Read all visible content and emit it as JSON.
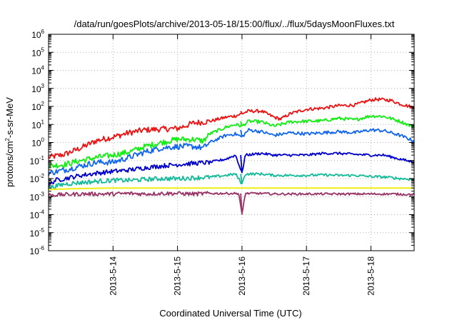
{
  "chart_data": {
    "type": "line",
    "title": "/data/run/goesPlots/archive/2013-05-18/15:00/flux/../flux/5daysMoonFluxes.txt",
    "xlabel": "Coordinated Universal Time (UTC)",
    "ylabel": {
      "prefix": "protons/cm",
      "superscript": "2",
      "suffix": "-s-sr-MeV"
    },
    "x_range_days": [
      13.0,
      18.67
    ],
    "x_ticks": [
      {
        "label": "2013-5-14",
        "day": 14
      },
      {
        "label": "2013-5-15",
        "day": 15
      },
      {
        "label": "2013-5-16",
        "day": 16
      },
      {
        "label": "2013-5-17",
        "day": 17
      },
      {
        "label": "2013-5-18",
        "day": 18
      }
    ],
    "y_scale": "log",
    "ylim": [
      1e-06,
      1000000.0
    ],
    "y_ticks": [
      {
        "base": "10",
        "exp": "-6"
      },
      {
        "base": "10",
        "exp": "-5"
      },
      {
        "base": "10",
        "exp": "-4"
      },
      {
        "base": "10",
        "exp": "-3"
      },
      {
        "base": "10",
        "exp": "-2"
      },
      {
        "base": "10",
        "exp": "-1"
      },
      {
        "base": "10",
        "exp": "0"
      },
      {
        "base": "10",
        "exp": "1"
      },
      {
        "base": "10",
        "exp": "2"
      },
      {
        "base": "10",
        "exp": "3"
      },
      {
        "base": "10",
        "exp": "4"
      },
      {
        "base": "10",
        "exp": "5"
      },
      {
        "base": "10",
        "exp": "6"
      }
    ],
    "grid": true,
    "series": [
      {
        "color": "#ee1111",
        "points": [
          [
            13.0,
            0.15
          ],
          [
            13.25,
            0.22
          ],
          [
            13.5,
            0.5
          ],
          [
            13.75,
            1.3
          ],
          [
            14.0,
            2.0
          ],
          [
            14.25,
            3.5
          ],
          [
            14.5,
            5.0
          ],
          [
            14.75,
            5.5
          ],
          [
            15.0,
            6.0
          ],
          [
            15.25,
            12
          ],
          [
            15.5,
            15
          ],
          [
            15.75,
            25
          ],
          [
            15.9,
            30
          ],
          [
            16.0,
            40
          ],
          [
            16.1,
            55
          ],
          [
            16.3,
            55
          ],
          [
            16.5,
            25
          ],
          [
            16.6,
            20
          ],
          [
            16.75,
            40
          ],
          [
            17.0,
            70
          ],
          [
            17.25,
            80
          ],
          [
            17.5,
            110
          ],
          [
            17.75,
            120
          ],
          [
            18.0,
            230
          ],
          [
            18.1,
            250
          ],
          [
            18.3,
            220
          ],
          [
            18.45,
            140
          ],
          [
            18.67,
            85
          ]
        ]
      },
      {
        "color": "#11ee11",
        "points": [
          [
            13.0,
            0.05
          ],
          [
            13.25,
            0.06
          ],
          [
            13.5,
            0.1
          ],
          [
            13.75,
            0.15
          ],
          [
            14.0,
            0.2
          ],
          [
            14.25,
            0.3
          ],
          [
            14.5,
            0.6
          ],
          [
            14.75,
            1.0
          ],
          [
            15.0,
            1.5
          ],
          [
            15.25,
            1.5
          ],
          [
            15.4,
            1.2
          ],
          [
            15.5,
            3.0
          ],
          [
            15.75,
            7.0
          ],
          [
            15.9,
            10
          ],
          [
            16.0,
            8
          ],
          [
            16.1,
            15
          ],
          [
            16.3,
            14
          ],
          [
            16.5,
            8
          ],
          [
            16.75,
            14
          ],
          [
            17.0,
            15
          ],
          [
            17.25,
            16
          ],
          [
            17.5,
            22
          ],
          [
            17.75,
            18
          ],
          [
            18.0,
            30
          ],
          [
            18.2,
            28
          ],
          [
            18.45,
            15
          ],
          [
            18.67,
            7
          ]
        ]
      },
      {
        "color": "#1166ee",
        "points": [
          [
            13.0,
            0.02
          ],
          [
            13.25,
            0.03
          ],
          [
            13.5,
            0.05
          ],
          [
            13.75,
            0.08
          ],
          [
            14.0,
            0.08
          ],
          [
            14.25,
            0.15
          ],
          [
            14.5,
            0.3
          ],
          [
            14.75,
            0.5
          ],
          [
            15.0,
            0.6
          ],
          [
            15.25,
            0.6
          ],
          [
            15.4,
            0.5
          ],
          [
            15.5,
            1.0
          ],
          [
            15.75,
            2.5
          ],
          [
            15.9,
            3.0
          ],
          [
            16.0,
            2.0
          ],
          [
            16.1,
            5.0
          ],
          [
            16.3,
            4.0
          ],
          [
            16.5,
            2.5
          ],
          [
            16.75,
            3.5
          ],
          [
            17.0,
            3.0
          ],
          [
            17.25,
            3.5
          ],
          [
            17.5,
            4.0
          ],
          [
            17.75,
            3.5
          ],
          [
            18.0,
            5.0
          ],
          [
            18.2,
            4.5
          ],
          [
            18.45,
            2.5
          ],
          [
            18.67,
            1.2
          ]
        ]
      },
      {
        "color": "#0000cc",
        "points": [
          [
            13.0,
            0.004
          ],
          [
            13.1,
            0.008
          ],
          [
            13.25,
            0.01
          ],
          [
            13.5,
            0.015
          ],
          [
            13.75,
            0.02
          ],
          [
            14.0,
            0.025
          ],
          [
            14.25,
            0.03
          ],
          [
            14.5,
            0.04
          ],
          [
            14.75,
            0.05
          ],
          [
            15.0,
            0.06
          ],
          [
            15.25,
            0.07
          ],
          [
            15.5,
            0.08
          ],
          [
            15.75,
            0.12
          ],
          [
            15.9,
            0.2
          ],
          [
            16.0,
            0.02
          ],
          [
            16.05,
            0.2
          ],
          [
            16.3,
            0.25
          ],
          [
            16.5,
            0.2
          ],
          [
            17.0,
            0.2
          ],
          [
            17.25,
            0.25
          ],
          [
            17.5,
            0.25
          ],
          [
            17.75,
            0.22
          ],
          [
            18.0,
            0.2
          ],
          [
            18.2,
            0.2
          ],
          [
            18.45,
            0.12
          ],
          [
            18.67,
            0.08
          ]
        ]
      },
      {
        "color": "#11bb99",
        "points": [
          [
            13.0,
            0.003
          ],
          [
            13.25,
            0.005
          ],
          [
            13.5,
            0.006
          ],
          [
            13.75,
            0.007
          ],
          [
            14.0,
            0.008
          ],
          [
            14.25,
            0.008
          ],
          [
            14.5,
            0.009
          ],
          [
            14.75,
            0.01
          ],
          [
            15.0,
            0.01
          ],
          [
            15.25,
            0.011
          ],
          [
            15.5,
            0.012
          ],
          [
            15.75,
            0.015
          ],
          [
            15.9,
            0.018
          ],
          [
            16.0,
            0.005
          ],
          [
            16.05,
            0.018
          ],
          [
            16.3,
            0.018
          ],
          [
            16.5,
            0.015
          ],
          [
            17.0,
            0.015
          ],
          [
            17.25,
            0.016
          ],
          [
            17.5,
            0.015
          ],
          [
            17.75,
            0.015
          ],
          [
            18.0,
            0.013
          ],
          [
            18.25,
            0.012
          ],
          [
            18.45,
            0.01
          ],
          [
            18.67,
            0.009
          ]
        ]
      },
      {
        "color": "#eeee11",
        "points": [
          [
            13.0,
            0.0025
          ],
          [
            13.5,
            0.0028
          ],
          [
            14.0,
            0.003
          ],
          [
            14.5,
            0.003
          ],
          [
            15.0,
            0.003
          ],
          [
            15.5,
            0.003
          ],
          [
            16.0,
            0.003
          ],
          [
            16.5,
            0.003
          ],
          [
            17.0,
            0.003
          ],
          [
            17.5,
            0.003
          ],
          [
            18.0,
            0.003
          ],
          [
            18.67,
            0.003
          ]
        ]
      },
      {
        "color": "#993366",
        "points": [
          [
            13.0,
            0.0012
          ],
          [
            13.25,
            0.0013
          ],
          [
            13.5,
            0.0014
          ],
          [
            13.75,
            0.0014
          ],
          [
            14.0,
            0.0014
          ],
          [
            14.25,
            0.0015
          ],
          [
            14.5,
            0.0014
          ],
          [
            14.75,
            0.0015
          ],
          [
            15.0,
            0.0015
          ],
          [
            15.25,
            0.0014
          ],
          [
            15.5,
            0.0015
          ],
          [
            15.75,
            0.0015
          ],
          [
            15.95,
            0.0015
          ],
          [
            16.0,
            0.0001
          ],
          [
            16.05,
            0.0015
          ],
          [
            16.3,
            0.0015
          ],
          [
            16.5,
            0.0014
          ],
          [
            17.0,
            0.0014
          ],
          [
            17.5,
            0.0014
          ],
          [
            18.0,
            0.0014
          ],
          [
            18.3,
            0.0014
          ],
          [
            18.67,
            0.0013
          ]
        ]
      }
    ]
  }
}
